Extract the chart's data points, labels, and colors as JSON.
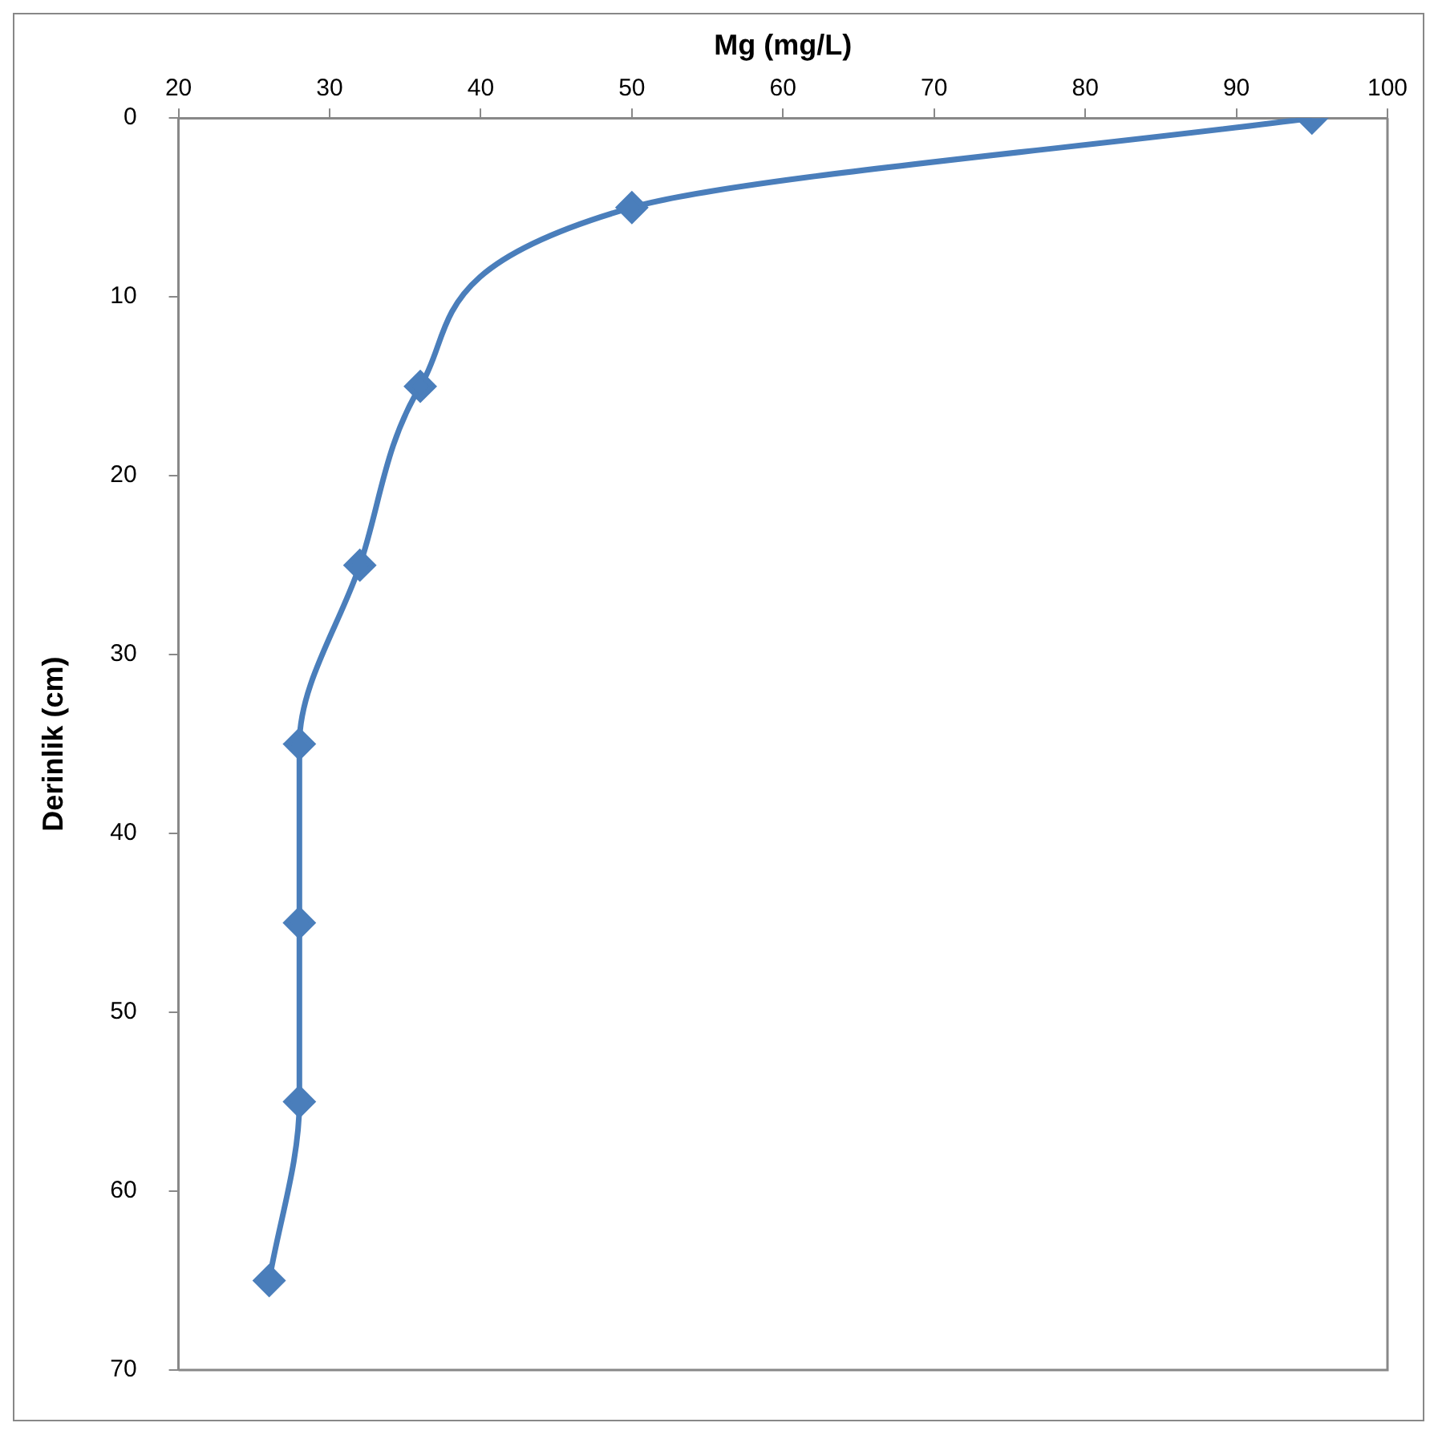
{
  "chart_data": {
    "type": "line",
    "xlabel": "Mg (mg/L)",
    "ylabel": "Derinlik (cm)",
    "series": [
      {
        "color": "#4a7ebb",
        "x": [
          95,
          50,
          36,
          32,
          28,
          28,
          28,
          26
        ],
        "values": [
          0,
          5,
          15,
          25,
          35,
          45,
          55,
          65
        ]
      }
    ],
    "xlim": [
      20,
      100
    ],
    "xticks": [
      20,
      30,
      40,
      50,
      60,
      70,
      80,
      90,
      100
    ],
    "ylim": [
      70,
      0
    ],
    "yticks": [
      0,
      10,
      20,
      30,
      40,
      50,
      60,
      70
    ],
    "grid": false,
    "legend": false,
    "marker": "diamond",
    "line_style": "solid"
  }
}
